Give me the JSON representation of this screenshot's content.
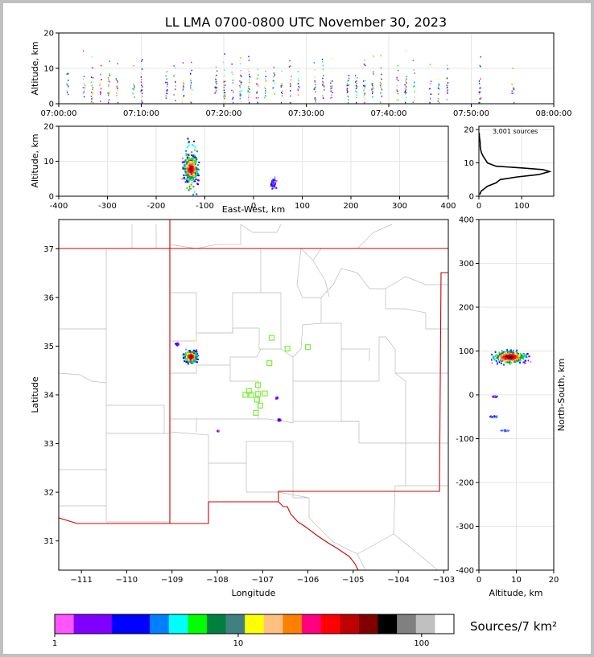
{
  "title": "LL LMA 0700-0800 UTC November 30, 2023",
  "colorbar_label": "Sources/7 km²",
  "colorbar_ticks": [
    {
      "value": 1,
      "label": "1"
    },
    {
      "value": 10,
      "label": "10"
    },
    {
      "value": 100,
      "label": "100"
    }
  ],
  "colorbar_colors": [
    "#ff55ff",
    "#8000ff",
    "#8000ff",
    "#0000ff",
    "#0000ff",
    "#0080ff",
    "#00ffff",
    "#00ff00",
    "#008040",
    "#408080",
    "#ffff00",
    "#ffc080",
    "#ff8000",
    "#ff0080",
    "#ff0000",
    "#c00000",
    "#800000",
    "#000000",
    "#808080",
    "#c0c0c0",
    "#ffffff"
  ],
  "chart_data": [
    {
      "id": "time-height",
      "type": "scatter",
      "ylabel": "Altitude, km",
      "xlim": [
        "07:00:00",
        "08:00:00"
      ],
      "ylim": [
        0,
        20
      ],
      "x_ticks": [
        "07:00:00",
        "07:10:00",
        "07:20:00",
        "07:30:00",
        "07:40:00",
        "07:50:00",
        "08:00:00"
      ],
      "y_ticks": [
        0,
        10,
        20
      ],
      "grid": true,
      "flash_times_min": [
        1,
        3,
        4,
        5,
        6,
        7,
        9,
        10,
        13,
        14,
        15,
        16,
        19,
        20,
        21,
        22,
        23,
        24,
        25,
        26,
        27,
        28,
        29,
        31,
        32,
        33,
        35,
        36,
        37,
        38,
        39,
        41,
        42,
        43,
        45,
        46,
        47,
        51,
        55
      ],
      "flash_altitude_range_km": [
        1,
        19
      ]
    },
    {
      "id": "east-west-altitude",
      "type": "heatmap",
      "xlabel": "East-West, km",
      "ylabel": "Altitude, km",
      "xlim": [
        -400,
        400
      ],
      "ylim": [
        0,
        20
      ],
      "x_ticks": [
        -400,
        -300,
        -200,
        -100,
        0,
        100,
        200,
        300,
        400
      ],
      "y_ticks": [
        0,
        10,
        20
      ],
      "grid": true,
      "clusters": [
        {
          "x_center": -130,
          "x_halfwidth": 20,
          "z_center": 8,
          "z_halfwidth": 5,
          "peak": "dense"
        },
        {
          "x_center": 40,
          "x_halfwidth": 8,
          "z_center": 4,
          "z_halfwidth": 2,
          "peak": "light"
        }
      ]
    },
    {
      "id": "altitude-histogram",
      "type": "line",
      "annotation": "3,001 sources",
      "xlim": [
        0,
        175
      ],
      "ylim": [
        0,
        21
      ],
      "x_ticks": [
        0,
        100
      ],
      "y_ticks": [
        0,
        10,
        20
      ],
      "grid": true,
      "points": [
        [
          2,
          0.5
        ],
        [
          5,
          1.5
        ],
        [
          10,
          2
        ],
        [
          20,
          3
        ],
        [
          40,
          4
        ],
        [
          50,
          5
        ],
        [
          90,
          5.8
        ],
        [
          140,
          6.5
        ],
        [
          165,
          7.4
        ],
        [
          150,
          8
        ],
        [
          100,
          8.5
        ],
        [
          40,
          9
        ],
        [
          20,
          10
        ],
        [
          15,
          11
        ],
        [
          10,
          12
        ],
        [
          6,
          13
        ],
        [
          4,
          14
        ],
        [
          3,
          15
        ],
        [
          3,
          16
        ],
        [
          2,
          17
        ],
        [
          1,
          18
        ],
        [
          1,
          19
        ]
      ]
    },
    {
      "id": "plan-view-map",
      "type": "scatter",
      "xlabel": "Longitude",
      "ylabel": "Latitude",
      "xlim": [
        -111.5,
        -102.9
      ],
      "ylim": [
        30.4,
        37.6
      ],
      "x_ticks": [
        -111,
        -110,
        -109,
        -108,
        -107,
        -106,
        -105,
        -104,
        -103
      ],
      "y_ticks": [
        31,
        32,
        33,
        34,
        35,
        36,
        37
      ],
      "flash_clusters": [
        {
          "lon": -108.6,
          "lat": 34.8,
          "spread": 0.2,
          "peak": "dense"
        },
        {
          "lon": -108.9,
          "lat": 35.05,
          "spread": 0.05,
          "peak": "light"
        },
        {
          "lon": -106.7,
          "lat": 33.95,
          "spread": 0.03,
          "peak": "light"
        },
        {
          "lon": -106.65,
          "lat": 33.5,
          "spread": 0.04,
          "peak": "light"
        },
        {
          "lon": -108.0,
          "lat": 33.27,
          "spread": 0.02,
          "peak": "light"
        }
      ],
      "stations": [
        {
          "lon": -106.8,
          "lat": 35.17
        },
        {
          "lon": -106.45,
          "lat": 34.95
        },
        {
          "lon": -106.0,
          "lat": 34.98
        },
        {
          "lon": -106.85,
          "lat": 34.65
        },
        {
          "lon": -107.1,
          "lat": 34.2
        },
        {
          "lon": -107.3,
          "lat": 34.08
        },
        {
          "lon": -107.38,
          "lat": 34.0
        },
        {
          "lon": -107.25,
          "lat": 34.0
        },
        {
          "lon": -107.1,
          "lat": 34.02
        },
        {
          "lon": -106.95,
          "lat": 34.03
        },
        {
          "lon": -107.12,
          "lat": 33.9
        },
        {
          "lon": -107.05,
          "lat": 33.78
        },
        {
          "lon": -107.15,
          "lat": 33.63
        }
      ]
    },
    {
      "id": "north-south-altitude",
      "type": "heatmap",
      "xlabel": "Altitude, km",
      "ylabel": "North-South, km",
      "xlim": [
        0,
        20
      ],
      "ylim": [
        -400,
        400
      ],
      "x_ticks": [
        0,
        10,
        20
      ],
      "y_ticks": [
        -400,
        -300,
        -200,
        -100,
        0,
        100,
        200,
        300,
        400
      ],
      "grid": true,
      "clusters": [
        {
          "z_center": 8,
          "z_halfwidth": 6,
          "y_center": 88,
          "y_halfwidth": 20,
          "peak": "dense"
        },
        {
          "z_center": 4,
          "z_halfwidth": 2,
          "y_center": -48,
          "y_halfwidth": 5,
          "peak": "light"
        },
        {
          "z_center": 4,
          "z_halfwidth": 1,
          "y_center": -2,
          "y_halfwidth": 3,
          "peak": "light"
        },
        {
          "z_center": 7,
          "z_halfwidth": 1.5,
          "y_center": -80,
          "y_halfwidth": 2,
          "peak": "light"
        }
      ]
    }
  ]
}
